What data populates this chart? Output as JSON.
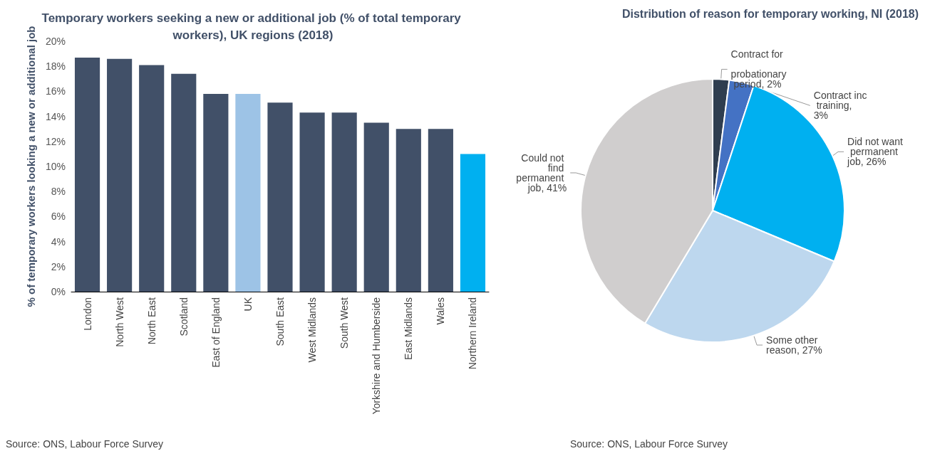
{
  "chart_data": [
    {
      "type": "bar",
      "title": "Temporary workers seeking a new or additional job (% of total temporary workers), UK regions (2018)",
      "ylabel": "% of temporary workers looking a new or additional job",
      "categories": [
        "London",
        "North West",
        "North East",
        "Scotland",
        "East of England",
        "UK",
        "South East",
        "West Midlands",
        "South West",
        "Yorkshire and Humberside",
        "East Midlands",
        "Wales",
        "Northern Ireland"
      ],
      "values": [
        18.7,
        18.6,
        18.1,
        17.4,
        15.8,
        15.8,
        15.1,
        14.3,
        14.3,
        13.5,
        13.0,
        13.0,
        11.0
      ],
      "colors": [
        "#415068",
        "#415068",
        "#415068",
        "#415068",
        "#415068",
        "#9dc3e6",
        "#415068",
        "#415068",
        "#415068",
        "#415068",
        "#415068",
        "#415068",
        "#00b0f0"
      ],
      "ylim": [
        0,
        20
      ],
      "yticks": [
        {
          "value": 0,
          "label": "0%"
        },
        {
          "value": 2,
          "label": "2%"
        },
        {
          "value": 4,
          "label": "4%"
        },
        {
          "value": 6,
          "label": "6%"
        },
        {
          "value": 8,
          "label": "8%"
        },
        {
          "value": 10,
          "label": "10%"
        },
        {
          "value": 12,
          "label": "12%"
        },
        {
          "value": 14,
          "label": "14%"
        },
        {
          "value": 16,
          "label": "16%"
        },
        {
          "value": 18,
          "label": "18%"
        },
        {
          "value": 20,
          "label": "20%"
        }
      ],
      "grid": false,
      "annotations": [
        "Source: ONS, Labour Force Survey"
      ]
    },
    {
      "type": "pie",
      "title": "Distribution of reason for temporary working, NI (2018)",
      "categories": [
        "Contract for probationary period, 2%",
        "Contract inc training, 3%",
        "Did not want permanent job, 26%",
        "Some other reason, 27%",
        "Could not find permanent job, 41%"
      ],
      "values": [
        2,
        3,
        26,
        27,
        41
      ],
      "colors": [
        "#2f3e50",
        "#4472c4",
        "#00b0f0",
        "#bdd7ee",
        "#d0cece"
      ],
      "annotations": [
        "Source: ONS, Labour Force Survey"
      ]
    }
  ]
}
